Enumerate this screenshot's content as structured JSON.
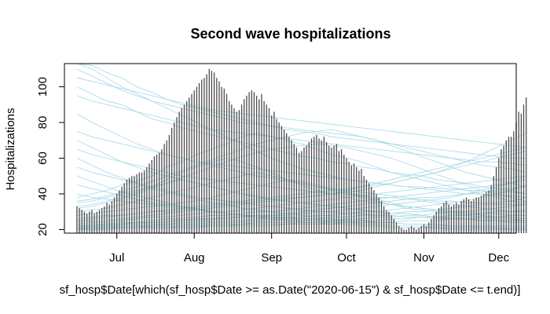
{
  "chart_data": {
    "type": "bar",
    "title": "Second wave hospitalizations",
    "xlabel": "sf_hosp$Date[which(sf_hosp$Date >= as.Date(\"2020-06-15\") & sf_hosp$Date <= t.end)]",
    "ylabel": "Hospitalizations",
    "x_range": [
      "2020-06-10",
      "2020-12-08"
    ],
    "ylim": [
      18,
      113
    ],
    "x_ticks": [
      {
        "date": "2020-07-01",
        "label": "Jul"
      },
      {
        "date": "2020-08-01",
        "label": "Aug"
      },
      {
        "date": "2020-09-01",
        "label": "Sep"
      },
      {
        "date": "2020-10-01",
        "label": "Oct"
      },
      {
        "date": "2020-11-01",
        "label": "Nov"
      },
      {
        "date": "2020-12-01",
        "label": "Dec"
      }
    ],
    "y_ticks": [
      20,
      40,
      60,
      80,
      100
    ],
    "grid": false,
    "bar_color": "#4d4d4d",
    "line_color": "#a6d8e6",
    "series": [
      {
        "type": "bar",
        "start_date": "2020-06-15",
        "values": [
          33,
          32,
          31,
          30,
          29,
          30,
          31,
          29,
          30,
          31,
          32,
          33,
          35,
          34,
          36,
          38,
          40,
          42,
          44,
          46,
          48,
          49,
          50,
          50,
          51,
          52,
          52,
          53,
          55,
          57,
          59,
          61,
          62,
          63,
          65,
          68,
          70,
          73,
          77,
          80,
          83,
          86,
          88,
          90,
          92,
          94,
          96,
          98,
          100,
          102,
          104,
          105,
          107,
          110,
          109,
          108,
          105,
          103,
          100,
          99,
          96,
          92,
          90,
          88,
          86,
          87,
          90,
          93,
          95,
          97,
          98,
          97,
          95,
          93,
          96,
          92,
          90,
          88,
          84,
          86,
          82,
          80,
          78,
          76,
          74,
          72,
          70,
          68,
          66,
          63,
          64,
          66,
          67,
          69,
          71,
          72,
          73,
          71,
          70,
          72,
          69,
          67,
          66,
          67,
          68,
          64,
          65,
          62,
          60,
          58,
          56,
          57,
          55,
          53,
          54,
          50,
          48,
          46,
          44,
          42,
          40,
          38,
          36,
          33,
          31,
          30,
          28,
          26,
          24,
          22,
          21,
          20,
          20,
          21,
          22,
          21,
          20,
          21,
          22,
          23,
          22,
          24,
          26,
          28,
          30,
          32,
          33,
          35,
          36,
          34,
          33,
          34,
          35,
          34,
          36,
          37,
          38,
          37,
          36,
          37,
          38,
          38,
          39,
          40,
          41,
          42,
          45,
          50,
          55,
          60,
          65,
          67,
          70,
          72,
          72,
          75,
          80,
          86,
          85,
          90,
          94
        ]
      }
    ],
    "simulated_lines": [
      [
        100,
        96,
        92,
        90,
        86,
        82,
        80,
        77,
        75,
        73,
        71,
        69,
        67,
        65,
        63,
        61,
        60,
        58,
        57,
        55,
        54,
        52,
        51,
        50,
        48,
        47,
        46,
        44,
        43,
        42,
        40
      ],
      [
        85,
        80,
        76,
        72,
        68,
        65,
        62,
        60,
        58,
        56,
        54,
        52,
        50,
        49,
        47,
        46,
        44,
        43,
        42,
        41,
        40,
        39,
        38,
        36,
        35,
        34,
        33,
        32,
        31,
        30,
        30
      ],
      [
        70,
        66,
        62,
        58,
        55,
        52,
        50,
        48,
        46,
        44,
        42,
        40,
        39,
        37,
        36,
        35,
        34,
        33,
        32,
        31,
        30,
        29,
        29,
        28,
        27,
        27,
        26,
        26,
        25,
        25,
        25
      ],
      [
        60,
        56,
        52,
        49,
        46,
        43,
        41,
        39,
        37,
        35,
        34,
        32,
        31,
        30,
        29,
        28,
        27,
        26,
        25,
        25,
        24,
        24,
        23,
        23,
        22,
        22,
        22,
        21,
        21,
        21,
        21
      ],
      [
        50,
        47,
        44,
        41,
        39,
        37,
        35,
        33,
        32,
        30,
        29,
        28,
        27,
        26,
        25,
        24,
        24,
        23,
        23,
        22,
        22,
        21,
        21,
        21,
        21,
        20,
        20,
        20,
        20,
        20,
        20
      ],
      [
        45,
        43,
        41,
        39,
        37,
        35,
        34,
        33,
        31,
        30,
        29,
        28,
        27,
        27,
        26,
        25,
        25,
        24,
        24,
        23,
        23,
        22,
        22,
        22,
        21,
        21,
        21,
        21,
        21,
        20,
        20
      ],
      [
        40,
        38,
        37,
        36,
        35,
        34,
        33,
        32,
        31,
        30,
        29,
        28,
        28,
        27,
        27,
        26,
        26,
        25,
        25,
        24,
        24,
        24,
        23,
        23,
        23,
        22,
        22,
        22,
        22,
        22,
        22
      ],
      [
        38,
        40,
        42,
        45,
        47,
        50,
        55,
        58,
        62,
        65,
        68,
        72,
        74,
        72,
        70,
        68,
        65,
        62,
        60,
        58,
        55,
        52,
        50,
        48,
        46,
        44,
        42,
        40,
        38,
        36,
        35
      ],
      [
        35,
        36,
        38,
        40,
        42,
        44,
        46,
        48,
        46,
        44,
        42,
        40,
        38,
        37,
        36,
        35,
        34,
        33,
        32,
        31,
        30,
        29,
        29,
        28,
        27,
        26,
        26,
        25,
        25,
        24,
        24
      ],
      [
        115,
        112,
        108,
        105,
        100,
        97,
        93,
        90,
        88,
        86,
        84,
        82,
        80,
        78,
        76,
        75,
        74,
        72,
        71,
        70,
        69,
        68,
        67,
        66,
        65,
        64,
        63,
        62,
        61,
        60,
        60
      ],
      [
        110,
        106,
        102,
        98,
        95,
        92,
        90,
        88,
        86,
        84,
        82,
        80,
        79,
        78,
        77,
        76,
        75,
        74,
        73,
        72,
        70,
        68,
        66,
        64,
        62,
        60,
        58,
        56,
        55,
        54,
        52
      ],
      [
        114,
        110,
        105,
        100,
        96,
        92,
        88,
        84,
        80,
        76,
        72,
        68,
        64,
        60,
        57,
        54,
        52,
        50,
        48,
        47,
        46,
        45,
        44,
        44,
        43,
        43,
        42,
        42,
        41,
        41,
        40
      ],
      [
        33,
        34,
        36,
        38,
        41,
        44,
        48,
        52,
        55,
        58,
        60,
        58,
        55,
        52,
        48,
        45,
        42,
        40,
        38,
        36,
        35,
        34,
        33,
        32,
        31,
        30,
        30,
        29,
        29,
        28,
        28
      ],
      [
        30,
        31,
        32,
        34,
        36,
        38,
        40,
        42,
        44,
        46,
        48,
        50,
        52,
        50,
        48,
        46,
        44,
        42,
        40,
        38,
        36,
        34,
        32,
        31,
        30,
        29,
        28,
        27,
        26,
        26,
        25
      ],
      [
        28,
        29,
        30,
        31,
        32,
        33,
        34,
        35,
        36,
        38,
        40,
        42,
        44,
        46,
        48,
        47,
        45,
        43,
        41,
        39,
        37,
        35,
        33,
        32,
        31,
        30,
        29,
        28,
        27,
        27,
        26
      ],
      [
        26,
        27,
        28,
        28,
        29,
        30,
        31,
        32,
        33,
        34,
        35,
        36,
        37,
        38,
        39,
        40,
        41,
        42,
        43,
        44,
        45,
        46,
        48,
        50,
        52,
        55,
        58,
        62,
        66,
        70,
        74
      ],
      [
        25,
        26,
        27,
        28,
        29,
        30,
        30,
        31,
        32,
        33,
        34,
        35,
        36,
        37,
        38,
        38,
        39,
        40,
        41,
        42,
        44,
        46,
        48,
        50,
        52,
        54,
        56,
        58,
        60,
        62,
        64
      ],
      [
        24,
        25,
        25,
        26,
        27,
        28,
        29,
        30,
        31,
        32,
        33,
        34,
        35,
        36,
        37,
        38,
        39,
        40,
        42,
        44,
        46,
        48,
        50,
        52,
        54,
        56,
        58,
        60,
        62,
        64,
        66
      ],
      [
        23,
        24,
        24,
        25,
        26,
        27,
        27,
        28,
        29,
        30,
        30,
        31,
        32,
        33,
        34,
        35,
        36,
        37,
        38,
        39,
        40,
        41,
        42,
        43,
        44,
        45,
        46,
        47,
        48,
        49,
        50
      ],
      [
        22,
        23,
        23,
        24,
        24,
        25,
        26,
        26,
        27,
        28,
        28,
        29,
        30,
        30,
        31,
        32,
        33,
        34,
        35,
        36,
        37,
        38,
        39,
        40,
        41,
        42,
        43,
        44,
        45,
        46,
        48
      ],
      [
        22,
        22,
        23,
        23,
        24,
        24,
        25,
        25,
        26,
        26,
        27,
        27,
        28,
        28,
        29,
        30,
        31,
        32,
        33,
        34,
        35,
        36,
        37,
        38,
        38,
        39,
        40,
        41,
        42,
        43,
        44
      ],
      [
        21,
        22,
        22,
        23,
        23,
        24,
        24,
        25,
        25,
        26,
        26,
        27,
        27,
        28,
        28,
        29,
        30,
        30,
        31,
        32,
        33,
        34,
        35,
        36,
        37,
        38,
        40,
        42,
        44,
        46,
        50
      ],
      [
        21,
        21,
        22,
        22,
        22,
        23,
        23,
        24,
        24,
        25,
        25,
        25,
        26,
        26,
        27,
        27,
        28,
        28,
        29,
        30,
        30,
        31,
        32,
        33,
        34,
        35,
        36,
        38,
        40,
        42,
        45
      ],
      [
        21,
        21,
        21,
        22,
        22,
        22,
        23,
        23,
        23,
        24,
        24,
        24,
        25,
        25,
        26,
        26,
        26,
        27,
        27,
        28,
        28,
        29,
        30,
        30,
        31,
        32,
        33,
        34,
        35,
        36,
        38
      ],
      [
        20,
        21,
        21,
        21,
        21,
        22,
        22,
        22,
        22,
        23,
        23,
        23,
        24,
        24,
        24,
        25,
        25,
        25,
        26,
        26,
        27,
        27,
        28,
        28,
        29,
        30,
        30,
        31,
        32,
        33,
        34
      ],
      [
        20,
        20,
        21,
        21,
        21,
        21,
        21,
        22,
        22,
        22,
        22,
        23,
        23,
        23,
        23,
        24,
        24,
        24,
        25,
        25,
        25,
        26,
        26,
        27,
        27,
        28,
        28,
        29,
        30,
        30,
        31
      ],
      [
        20,
        20,
        20,
        21,
        21,
        21,
        21,
        21,
        21,
        22,
        22,
        22,
        22,
        22,
        23,
        23,
        23,
        23,
        24,
        24,
        24,
        24,
        25,
        25,
        25,
        26,
        26,
        27,
        27,
        28,
        28
      ],
      [
        55,
        52,
        50,
        48,
        46,
        44,
        42,
        40,
        38,
        37,
        36,
        35,
        34,
        33,
        32,
        31,
        30,
        30,
        29,
        29,
        28,
        28,
        27,
        27,
        26,
        26,
        26,
        25,
        25,
        25,
        25
      ],
      [
        65,
        62,
        60,
        58,
        56,
        54,
        52,
        50,
        49,
        48,
        47,
        46,
        45,
        44,
        43,
        42,
        41,
        40,
        40,
        39,
        38,
        38,
        37,
        37,
        36,
        36,
        35,
        35,
        34,
        34,
        34
      ],
      [
        75,
        72,
        70,
        68,
        66,
        64,
        62,
        60,
        58,
        57,
        56,
        55,
        54,
        53,
        52,
        51,
        50,
        49,
        48,
        47,
        46,
        45,
        44,
        43,
        42,
        41,
        40,
        40,
        39,
        39,
        38
      ],
      [
        95,
        92,
        90,
        88,
        86,
        84,
        82,
        80,
        78,
        76,
        75,
        74,
        73,
        72,
        71,
        70,
        69,
        68,
        67,
        66,
        65,
        64,
        63,
        62,
        61,
        60,
        59,
        58,
        58,
        57,
        56
      ],
      [
        105,
        103,
        101,
        99,
        97,
        95,
        93,
        91,
        89,
        87,
        86,
        85,
        84,
        83,
        82,
        81,
        80,
        79,
        78,
        77,
        76,
        75,
        74,
        73,
        72,
        71,
        70,
        69,
        68,
        67,
        66
      ],
      [
        36,
        37,
        39,
        41,
        44,
        47,
        50,
        53,
        56,
        59,
        62,
        65,
        68,
        70,
        72,
        74,
        75,
        76,
        74,
        72,
        70,
        67,
        64,
        61,
        58,
        55,
        52,
        50,
        48,
        46,
        44
      ],
      [
        32,
        33,
        35,
        37,
        40,
        43,
        46,
        49,
        52,
        55,
        58,
        61,
        63,
        65,
        66,
        67,
        68,
        67,
        66,
        64,
        62,
        60,
        57,
        54,
        51,
        48,
        45,
        42,
        40,
        38,
        36
      ]
    ]
  }
}
